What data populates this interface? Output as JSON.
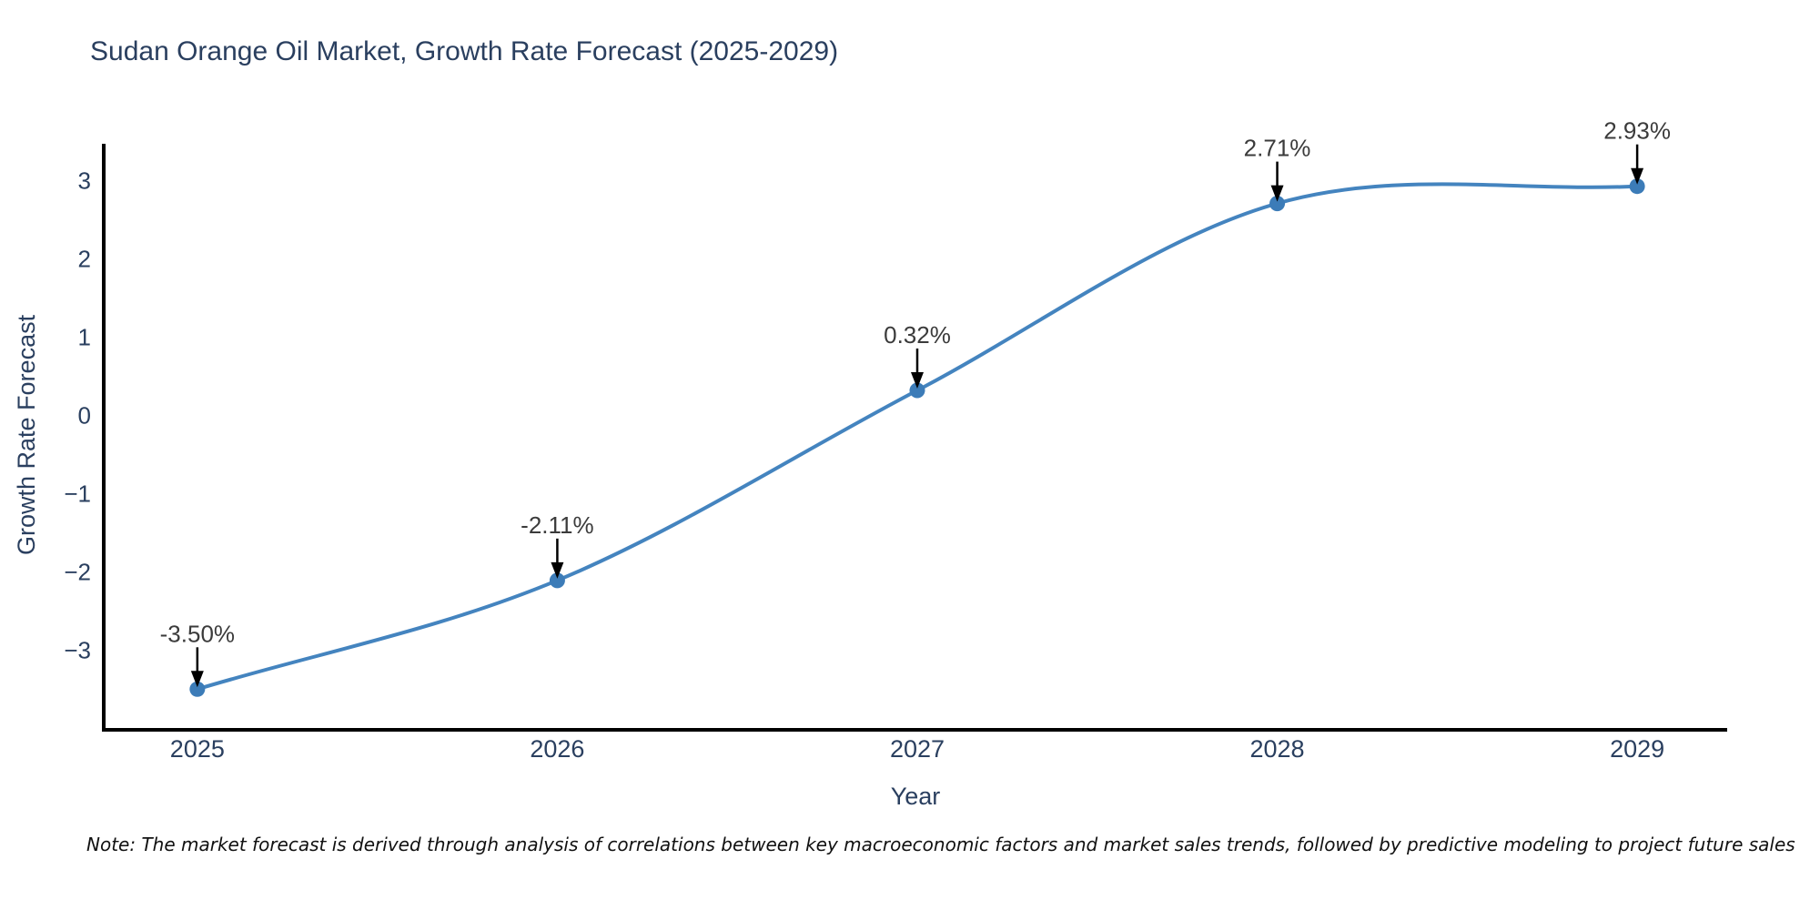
{
  "chart_data": {
    "type": "line",
    "title": "Sudan Orange Oil Market, Growth Rate Forecast (2025-2029)",
    "xlabel": "Year",
    "ylabel": "Growth Rate Forecast",
    "x": [
      2025,
      2026,
      2027,
      2028,
      2029
    ],
    "y": [
      -3.5,
      -2.11,
      0.32,
      2.71,
      2.93
    ],
    "point_labels": [
      "-3.50%",
      "-2.11%",
      "0.32%",
      "2.71%",
      "2.93%"
    ],
    "x_tick_labels": [
      "2025",
      "2026",
      "2027",
      "2028",
      "2029"
    ],
    "y_ticks": [
      3,
      2,
      1,
      0,
      -1,
      -2,
      -3
    ],
    "y_tick_labels": [
      "3",
      "2",
      "1",
      "0",
      "−1",
      "−2",
      "−3"
    ],
    "xlim": [
      2024.74,
      2029.25
    ],
    "ylim": [
      -4.02,
      3.45
    ],
    "line_shape": "spline",
    "grid": false,
    "legend": "none",
    "colors": {
      "line": "#4484bf",
      "marker": "#3c7cb8",
      "axis": "#000000",
      "title_text": "#2a3f5f",
      "tick_text": "#2a3f5f",
      "annotation_text": "#3b3b3b",
      "arrow": "#000000"
    }
  },
  "note": {
    "text": "Note: The market forecast is derived through analysis of correlations between key macroeconomic factors and market sales trends, followed by predictive modeling to project future sales"
  }
}
